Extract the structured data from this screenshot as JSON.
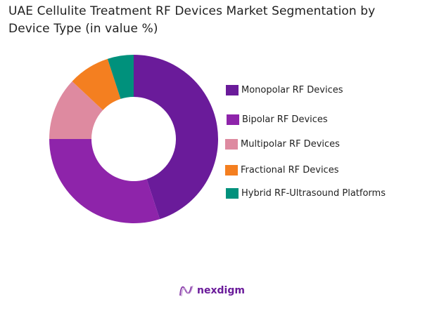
{
  "title": "UAE Cellulite Treatment RF Devices Market Segmentation by Device Type (in value %)",
  "title_lines": [
    "UAE Cellulite Treatment RF Devices Market Segmentation by",
    "Device Type (in value %)"
  ],
  "brand": {
    "name": "nexdigm",
    "icon": "nexdigm-logo-icon",
    "color": "#7b2cbf"
  },
  "chart_data": {
    "type": "pie",
    "subtype": "donut",
    "title": "UAE Cellulite Treatment RF Devices Market Segmentation by Device Type (in value %)",
    "categories": [
      "Monopolar RF Devices",
      "Bipolar RF Devices",
      "Multipolar RF Devices",
      "Fractional RF Devices",
      "Hybrid RF-Ultrasound Platforms"
    ],
    "values": [
      45,
      30,
      12,
      8,
      5
    ],
    "colors": [
      "#6a1b9a",
      "#8e24aa",
      "#de8aa0",
      "#f47f20",
      "#00917c"
    ],
    "start_angle": "12 o'clock, clockwise",
    "legend_position": "right",
    "data_labels": false
  },
  "legend": [
    {
      "label": "Monopolar RF Devices",
      "color": "#6a1b9a"
    },
    {
      "label": "Bipolar RF Devices",
      "color": "#8e24aa"
    },
    {
      "label": "Multipolar RF Devices",
      "color": "#de8aa0"
    },
    {
      "label": "Fractional RF Devices",
      "color": "#f47f20"
    },
    {
      "label": "Hybrid RF-Ultrasound Platforms",
      "color": "#00917c"
    }
  ]
}
